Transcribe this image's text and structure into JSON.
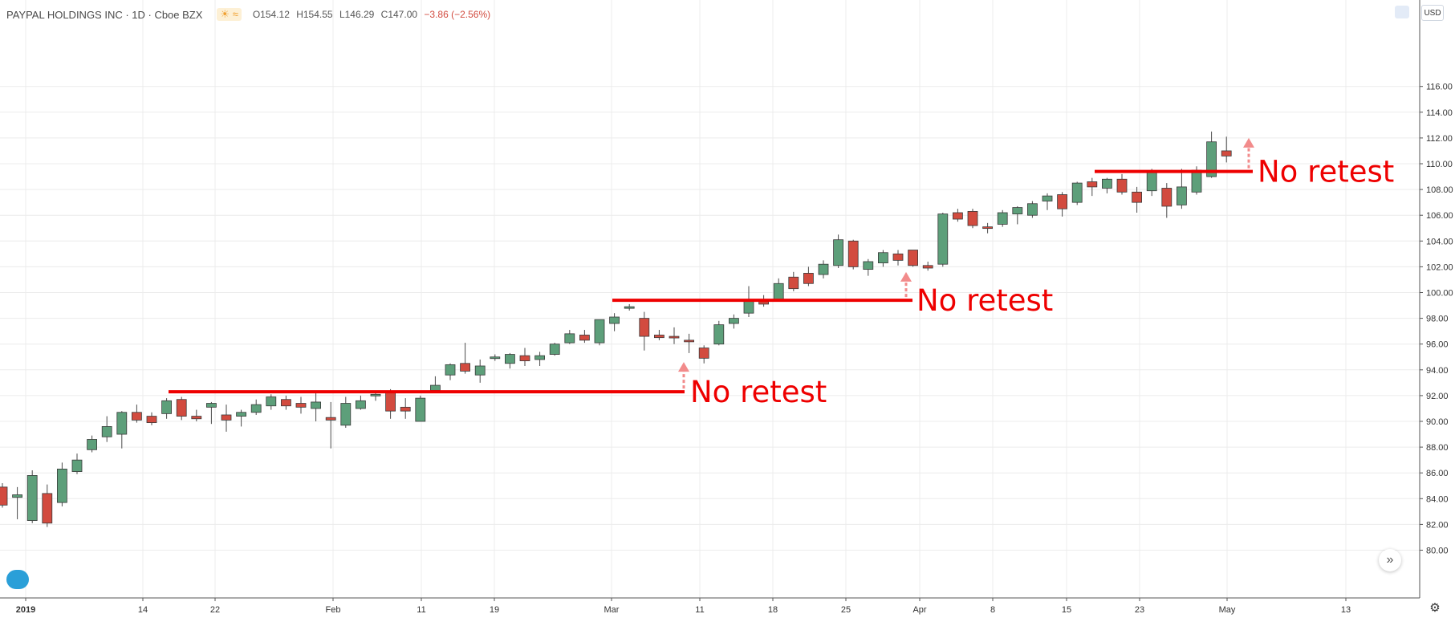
{
  "header": {
    "title": "PAYPAL HOLDINGS INC · 1D · Cboe BZX",
    "weather_icons": "☀ ≈",
    "open": "O154.12",
    "high": "H154.55",
    "low": "L146.29",
    "close": "C147.00",
    "change": "−3.86 (−2.56%)"
  },
  "currency": "USD",
  "annotations": [
    {
      "text": "No retest",
      "level": 92.3,
      "from": "Jan 16",
      "to": "Mar 11"
    },
    {
      "text": "No retest",
      "level": 99.4,
      "from": "Mar 1",
      "to": "Apr 1"
    },
    {
      "text": "No retest",
      "level": 109.4,
      "from": "Apr 18",
      "to": "May 3"
    }
  ],
  "colors": {
    "up": "#5d9f7a",
    "down": "#d24b3f",
    "level_line": "#ee0000",
    "annotation_text": "#ee0000",
    "arrow": "#f28b8b",
    "grid": "#ececec"
  },
  "chart_data": {
    "type": "candlestick",
    "title": "PAYPAL HOLDINGS INC · 1D · Cboe BZX",
    "ylabel": "USD",
    "ylim": [
      79,
      118.5
    ],
    "y_ticks": [
      "80.00",
      "82.00",
      "84.00",
      "86.00",
      "88.00",
      "90.00",
      "92.00",
      "94.00",
      "96.00",
      "98.00",
      "100.00",
      "102.00",
      "104.00",
      "106.00",
      "108.00",
      "110.00",
      "112.00",
      "114.00",
      "116.00"
    ],
    "x_ticks": [
      "2019",
      "14",
      "22",
      "Feb",
      "11",
      "19",
      "Mar",
      "11",
      "18",
      "25",
      "Apr",
      "8",
      "15",
      "23",
      "May",
      "13"
    ],
    "grid": true,
    "candles": [
      {
        "date": "2018-12-31",
        "o": 84.9,
        "h": 85.2,
        "l": 83.3,
        "c": 83.5
      },
      {
        "date": "2019-01-02",
        "o": 84.1,
        "h": 84.9,
        "l": 82.4,
        "c": 84.3
      },
      {
        "date": "2019-01-03",
        "o": 82.3,
        "h": 86.2,
        "l": 82.1,
        "c": 85.8
      },
      {
        "date": "2019-01-04",
        "o": 84.4,
        "h": 85.1,
        "l": 81.8,
        "c": 82.1
      },
      {
        "date": "2019-01-07",
        "o": 83.7,
        "h": 86.8,
        "l": 83.4,
        "c": 86.3
      },
      {
        "date": "2019-01-08",
        "o": 86.1,
        "h": 87.5,
        "l": 85.9,
        "c": 87.0
      },
      {
        "date": "2019-01-09",
        "o": 87.8,
        "h": 88.9,
        "l": 87.6,
        "c": 88.6
      },
      {
        "date": "2019-01-10",
        "o": 88.8,
        "h": 90.4,
        "l": 88.4,
        "c": 89.6
      },
      {
        "date": "2019-01-11",
        "o": 89.0,
        "h": 90.8,
        "l": 87.9,
        "c": 90.7
      },
      {
        "date": "2019-01-14",
        "o": 90.7,
        "h": 91.3,
        "l": 89.9,
        "c": 90.1
      },
      {
        "date": "2019-01-15",
        "o": 90.4,
        "h": 90.7,
        "l": 89.7,
        "c": 89.9
      },
      {
        "date": "2019-01-16",
        "o": 90.6,
        "h": 91.8,
        "l": 90.2,
        "c": 91.6
      },
      {
        "date": "2019-01-17",
        "o": 91.7,
        "h": 91.9,
        "l": 90.1,
        "c": 90.4
      },
      {
        "date": "2019-01-18",
        "o": 90.4,
        "h": 90.9,
        "l": 90.0,
        "c": 90.2
      },
      {
        "date": "2019-01-22",
        "o": 91.1,
        "h": 91.5,
        "l": 89.8,
        "c": 91.4
      },
      {
        "date": "2019-01-23",
        "o": 90.5,
        "h": 91.3,
        "l": 89.2,
        "c": 90.1
      },
      {
        "date": "2019-01-24",
        "o": 90.4,
        "h": 90.9,
        "l": 89.6,
        "c": 90.7
      },
      {
        "date": "2019-01-25",
        "o": 90.7,
        "h": 91.7,
        "l": 90.5,
        "c": 91.3
      },
      {
        "date": "2019-01-28",
        "o": 91.2,
        "h": 92.1,
        "l": 90.9,
        "c": 91.9
      },
      {
        "date": "2019-01-29",
        "o": 91.7,
        "h": 92.0,
        "l": 90.9,
        "c": 91.2
      },
      {
        "date": "2019-01-30",
        "o": 91.4,
        "h": 91.9,
        "l": 90.6,
        "c": 91.1
      },
      {
        "date": "2019-01-31",
        "o": 91.0,
        "h": 92.2,
        "l": 90.0,
        "c": 91.5
      },
      {
        "date": "2019-02-01",
        "o": 90.3,
        "h": 91.5,
        "l": 87.9,
        "c": 90.1
      },
      {
        "date": "2019-02-04",
        "o": 89.7,
        "h": 91.9,
        "l": 89.5,
        "c": 91.4
      },
      {
        "date": "2019-02-05",
        "o": 91.0,
        "h": 92.0,
        "l": 90.9,
        "c": 91.6
      },
      {
        "date": "2019-02-06",
        "o": 92.0,
        "h": 92.3,
        "l": 91.6,
        "c": 92.1
      },
      {
        "date": "2019-02-07",
        "o": 92.3,
        "h": 92.5,
        "l": 90.2,
        "c": 90.8
      },
      {
        "date": "2019-02-08",
        "o": 91.1,
        "h": 91.8,
        "l": 90.2,
        "c": 90.8
      },
      {
        "date": "2019-02-11",
        "o": 90.0,
        "h": 92.0,
        "l": 90.0,
        "c": 91.8
      },
      {
        "date": "2019-02-12",
        "o": 92.4,
        "h": 93.5,
        "l": 92.2,
        "c": 92.8
      },
      {
        "date": "2019-02-13",
        "o": 93.6,
        "h": 94.5,
        "l": 93.2,
        "c": 94.4
      },
      {
        "date": "2019-02-14",
        "o": 94.5,
        "h": 96.1,
        "l": 93.7,
        "c": 93.9
      },
      {
        "date": "2019-02-15",
        "o": 93.6,
        "h": 94.8,
        "l": 93.0,
        "c": 94.3
      },
      {
        "date": "2019-02-19",
        "o": 94.9,
        "h": 95.2,
        "l": 94.7,
        "c": 95.0
      },
      {
        "date": "2019-02-20",
        "o": 94.5,
        "h": 95.3,
        "l": 94.1,
        "c": 95.2
      },
      {
        "date": "2019-02-21",
        "o": 95.1,
        "h": 95.7,
        "l": 94.3,
        "c": 94.7
      },
      {
        "date": "2019-02-22",
        "o": 94.8,
        "h": 95.4,
        "l": 94.3,
        "c": 95.1
      },
      {
        "date": "2019-02-25",
        "o": 95.2,
        "h": 96.1,
        "l": 95.1,
        "c": 96.0
      },
      {
        "date": "2019-02-26",
        "o": 96.1,
        "h": 97.1,
        "l": 96.0,
        "c": 96.8
      },
      {
        "date": "2019-02-27",
        "o": 96.7,
        "h": 97.1,
        "l": 96.1,
        "c": 96.3
      },
      {
        "date": "2019-02-28",
        "o": 96.1,
        "h": 97.9,
        "l": 95.9,
        "c": 97.9
      },
      {
        "date": "2019-03-01",
        "o": 97.6,
        "h": 98.4,
        "l": 97.0,
        "c": 98.1
      },
      {
        "date": "2019-03-04",
        "o": 98.8,
        "h": 99.1,
        "l": 98.6,
        "c": 98.9
      },
      {
        "date": "2019-03-05",
        "o": 98.0,
        "h": 98.5,
        "l": 95.5,
        "c": 96.6
      },
      {
        "date": "2019-03-06",
        "o": 96.7,
        "h": 97.1,
        "l": 96.3,
        "c": 96.5
      },
      {
        "date": "2019-03-07",
        "o": 96.6,
        "h": 97.3,
        "l": 96.0,
        "c": 96.5
      },
      {
        "date": "2019-03-08",
        "o": 96.3,
        "h": 96.8,
        "l": 95.3,
        "c": 96.2
      },
      {
        "date": "2019-03-11",
        "o": 95.7,
        "h": 95.9,
        "l": 94.5,
        "c": 94.9
      },
      {
        "date": "2019-03-12",
        "o": 96.0,
        "h": 97.8,
        "l": 95.9,
        "c": 97.5
      },
      {
        "date": "2019-03-13",
        "o": 97.6,
        "h": 98.3,
        "l": 97.2,
        "c": 98.0
      },
      {
        "date": "2019-03-14",
        "o": 98.4,
        "h": 100.5,
        "l": 98.1,
        "c": 99.4
      },
      {
        "date": "2019-03-15",
        "o": 99.3,
        "h": 99.8,
        "l": 98.9,
        "c": 99.1
      },
      {
        "date": "2019-03-18",
        "o": 99.4,
        "h": 101.1,
        "l": 99.3,
        "c": 100.7
      },
      {
        "date": "2019-03-19",
        "o": 101.2,
        "h": 101.6,
        "l": 100.1,
        "c": 100.3
      },
      {
        "date": "2019-03-20",
        "o": 101.5,
        "h": 102.0,
        "l": 100.5,
        "c": 100.7
      },
      {
        "date": "2019-03-21",
        "o": 101.4,
        "h": 102.5,
        "l": 101.1,
        "c": 102.2
      },
      {
        "date": "2019-03-22",
        "o": 102.1,
        "h": 104.5,
        "l": 101.9,
        "c": 104.1
      },
      {
        "date": "2019-03-25",
        "o": 104.0,
        "h": 104.1,
        "l": 101.8,
        "c": 102.0
      },
      {
        "date": "2019-03-26",
        "o": 101.8,
        "h": 102.6,
        "l": 101.3,
        "c": 102.4
      },
      {
        "date": "2019-03-27",
        "o": 102.3,
        "h": 103.3,
        "l": 102.0,
        "c": 103.1
      },
      {
        "date": "2019-03-28",
        "o": 103.0,
        "h": 103.3,
        "l": 102.1,
        "c": 102.5
      },
      {
        "date": "2019-03-29",
        "o": 103.3,
        "h": 103.3,
        "l": 102.0,
        "c": 102.1
      },
      {
        "date": "2019-04-01",
        "o": 102.1,
        "h": 102.4,
        "l": 101.7,
        "c": 101.9
      },
      {
        "date": "2019-04-02",
        "o": 102.2,
        "h": 106.2,
        "l": 102.0,
        "c": 106.1
      },
      {
        "date": "2019-04-03",
        "o": 106.2,
        "h": 106.5,
        "l": 105.5,
        "c": 105.7
      },
      {
        "date": "2019-04-04",
        "o": 106.3,
        "h": 106.5,
        "l": 105.0,
        "c": 105.2
      },
      {
        "date": "2019-04-05",
        "o": 105.1,
        "h": 105.4,
        "l": 104.6,
        "c": 105.0
      },
      {
        "date": "2019-04-08",
        "o": 105.3,
        "h": 106.4,
        "l": 105.1,
        "c": 106.2
      },
      {
        "date": "2019-04-09",
        "o": 106.1,
        "h": 106.7,
        "l": 105.3,
        "c": 106.6
      },
      {
        "date": "2019-04-10",
        "o": 106.0,
        "h": 107.1,
        "l": 105.8,
        "c": 106.9
      },
      {
        "date": "2019-04-11",
        "o": 107.1,
        "h": 107.7,
        "l": 106.4,
        "c": 107.5
      },
      {
        "date": "2019-04-12",
        "o": 107.6,
        "h": 107.8,
        "l": 105.9,
        "c": 106.5
      },
      {
        "date": "2019-04-15",
        "o": 107.0,
        "h": 108.6,
        "l": 106.8,
        "c": 108.5
      },
      {
        "date": "2019-04-16",
        "o": 108.6,
        "h": 108.9,
        "l": 107.5,
        "c": 108.2
      },
      {
        "date": "2019-04-17",
        "o": 108.1,
        "h": 108.9,
        "l": 107.7,
        "c": 108.8
      },
      {
        "date": "2019-04-18",
        "o": 108.8,
        "h": 109.2,
        "l": 107.6,
        "c": 107.8
      },
      {
        "date": "2019-04-22",
        "o": 107.8,
        "h": 108.2,
        "l": 106.2,
        "c": 107.0
      },
      {
        "date": "2019-04-23",
        "o": 107.9,
        "h": 109.6,
        "l": 107.5,
        "c": 109.4
      },
      {
        "date": "2019-04-24",
        "o": 108.1,
        "h": 108.5,
        "l": 105.8,
        "c": 106.7
      },
      {
        "date": "2019-04-25",
        "o": 106.8,
        "h": 109.6,
        "l": 106.5,
        "c": 108.2
      },
      {
        "date": "2019-04-26",
        "o": 107.8,
        "h": 109.8,
        "l": 107.6,
        "c": 109.5
      },
      {
        "date": "2019-04-29",
        "o": 109.0,
        "h": 112.5,
        "l": 108.9,
        "c": 111.7
      },
      {
        "date": "2019-04-30",
        "o": 111.0,
        "h": 112.1,
        "l": 110.1,
        "c": 110.6
      }
    ]
  }
}
